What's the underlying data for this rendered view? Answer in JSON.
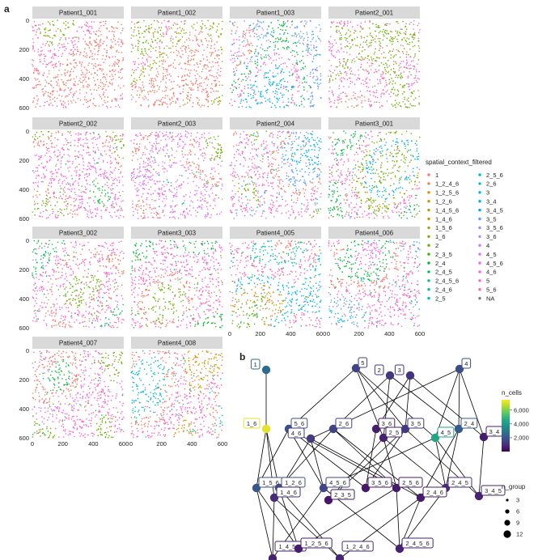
{
  "panel_a": {
    "label": "a",
    "legend_title": "spatial_context_filtered",
    "legend_items": [
      {
        "name": "1",
        "color": "#F8766D"
      },
      {
        "name": "1_2_4_6",
        "color": "#F07E4A"
      },
      {
        "name": "1_2_5_6",
        "color": "#E58700"
      },
      {
        "name": "1_2_6",
        "color": "#D89000"
      },
      {
        "name": "1_4_5_6",
        "color": "#C99800"
      },
      {
        "name": "1_4_6",
        "color": "#B79F00"
      },
      {
        "name": "1_5_6",
        "color": "#A3A500"
      },
      {
        "name": "1_6",
        "color": "#8BAB00"
      },
      {
        "name": "2",
        "color": "#6BB100"
      },
      {
        "name": "2_3_5",
        "color": "#39B600"
      },
      {
        "name": "2_4",
        "color": "#00BA38"
      },
      {
        "name": "2_4_5",
        "color": "#00BD5C"
      },
      {
        "name": "2_4_5_6",
        "color": "#00BF7D"
      },
      {
        "name": "2_4_6",
        "color": "#00C09A"
      },
      {
        "name": "2_5",
        "color": "#00C0B5"
      },
      {
        "name": "2_5_6",
        "color": "#00BECD"
      },
      {
        "name": "2_6",
        "color": "#00BAE0"
      },
      {
        "name": "3",
        "color": "#00B4EF"
      },
      {
        "name": "3_4",
        "color": "#00ADFA"
      },
      {
        "name": "3_4_5",
        "color": "#00A5FF"
      },
      {
        "name": "3_5",
        "color": "#619CFF"
      },
      {
        "name": "3_5_6",
        "color": "#8F91FF"
      },
      {
        "name": "3_6",
        "color": "#B186FF"
      },
      {
        "name": "4",
        "color": "#CB7BFF"
      },
      {
        "name": "4_5",
        "color": "#DE71F9"
      },
      {
        "name": "4_5_6",
        "color": "#EE67EC"
      },
      {
        "name": "4_6",
        "color": "#F862DB"
      },
      {
        "name": "5",
        "color": "#FF61C7"
      },
      {
        "name": "5_6",
        "color": "#FF65AE"
      },
      {
        "name": "NA",
        "color": "#7F7F7F"
      }
    ]
  },
  "panel_b": {
    "label": "b",
    "colorbar_title": "n_cells",
    "colorbar_ticks": [
      "6,000",
      "4,000",
      "2,000"
    ],
    "size_title": "n_group",
    "size_ticks": [
      "3",
      "6",
      "9",
      "12"
    ],
    "nodes": [
      {
        "name": "1",
        "ncells": 2600
      },
      {
        "name": "5",
        "ncells": 1500
      },
      {
        "name": "2",
        "ncells": 1200
      },
      {
        "name": "3",
        "ncells": 1100
      },
      {
        "name": "4",
        "ncells": 1700
      },
      {
        "name": "1_6",
        "ncells": 7200
      },
      {
        "name": "5_6",
        "ncells": 1800
      },
      {
        "name": "2_6",
        "ncells": 1500
      },
      {
        "name": "4_6",
        "ncells": 1300
      },
      {
        "name": "3_6",
        "ncells": 600
      },
      {
        "name": "2_5",
        "ncells": 700
      },
      {
        "name": "3_5",
        "ncells": 1300
      },
      {
        "name": "4_5",
        "ncells": 4400
      },
      {
        "name": "2_4",
        "ncells": 2100
      },
      {
        "name": "3_4",
        "ncells": 600
      },
      {
        "name": "1_5_6",
        "ncells": 2000
      },
      {
        "name": "1_2_6",
        "ncells": 1700
      },
      {
        "name": "1_4_6",
        "ncells": 900
      },
      {
        "name": "4_5_6",
        "ncells": 1600
      },
      {
        "name": "3_5_6",
        "ncells": 500
      },
      {
        "name": "2_5_6",
        "ncells": 600
      },
      {
        "name": "2_3_5",
        "ncells": 500
      },
      {
        "name": "2_4_5",
        "ncells": 900
      },
      {
        "name": "2_4_6",
        "ncells": 600
      },
      {
        "name": "3_4_5",
        "ncells": 700
      },
      {
        "name": "1_4_5_6",
        "ncells": 700
      },
      {
        "name": "1_2_4_6",
        "ncells": 800
      },
      {
        "name": "1_2_5_6",
        "ncells": 600
      },
      {
        "name": "2_4_5_6",
        "ncells": 700
      }
    ]
  },
  "chart_data": [
    {
      "type": "scatter",
      "facets": [
        "Patient1_001",
        "Patient1_002",
        "Patient1_003",
        "Patient2_001",
        "Patient2_002",
        "Patient2_003",
        "Patient2_004",
        "Patient3_001",
        "Patient3_002",
        "Patient3_003",
        "Patient4_005",
        "Patient4_006",
        "Patient4_007",
        "Patient4_008"
      ],
      "x_ticks": [
        "0",
        "200",
        "400",
        "600"
      ],
      "y_ticks": [
        "0",
        "200",
        "400",
        "600"
      ],
      "xlim": [
        0,
        600
      ],
      "ylim": [
        600,
        0
      ],
      "color_by": "spatial_context_filtered"
    },
    {
      "type": "graph",
      "edges": [
        [
          "1",
          "1_6"
        ],
        [
          "5",
          "5_6"
        ],
        [
          "5",
          "2_5"
        ],
        [
          "5",
          "3_5"
        ],
        [
          "5",
          "4_5"
        ],
        [
          "2",
          "2_6"
        ],
        [
          "2",
          "2_5"
        ],
        [
          "2",
          "2_4"
        ],
        [
          "3",
          "3_6"
        ],
        [
          "3",
          "3_5"
        ],
        [
          "3",
          "3_4"
        ],
        [
          "4",
          "4_6"
        ],
        [
          "4",
          "4_5"
        ],
        [
          "4",
          "2_4"
        ],
        [
          "4",
          "3_4"
        ],
        [
          "1_6",
          "1_5_6"
        ],
        [
          "1_6",
          "1_2_6"
        ],
        [
          "1_6",
          "1_4_6"
        ],
        [
          "5_6",
          "1_5_6"
        ],
        [
          "5_6",
          "4_5_6"
        ],
        [
          "5_6",
          "3_5_6"
        ],
        [
          "5_6",
          "2_5_6"
        ],
        [
          "2_6",
          "1_2_6"
        ],
        [
          "2_6",
          "2_5_6"
        ],
        [
          "2_6",
          "2_4_6"
        ],
        [
          "4_6",
          "1_4_6"
        ],
        [
          "4_6",
          "4_5_6"
        ],
        [
          "4_6",
          "2_4_6"
        ],
        [
          "3_6",
          "3_5_6"
        ],
        [
          "2_5",
          "2_5_6"
        ],
        [
          "2_5",
          "2_3_5"
        ],
        [
          "2_5",
          "2_4_5"
        ],
        [
          "3_5",
          "3_5_6"
        ],
        [
          "3_5",
          "2_3_5"
        ],
        [
          "3_5",
          "3_4_5"
        ],
        [
          "4_5",
          "4_5_6"
        ],
        [
          "4_5",
          "2_4_5"
        ],
        [
          "4_5",
          "3_4_5"
        ],
        [
          "2_4",
          "2_4_5"
        ],
        [
          "2_4",
          "2_4_6"
        ],
        [
          "3_4",
          "3_4_5"
        ],
        [
          "1_5_6",
          "1_4_5_6"
        ],
        [
          "1_5_6",
          "1_2_5_6"
        ],
        [
          "1_2_6",
          "1_2_4_6"
        ],
        [
          "1_2_6",
          "1_2_5_6"
        ],
        [
          "1_4_6",
          "1_4_5_6"
        ],
        [
          "1_4_6",
          "1_2_4_6"
        ],
        [
          "4_5_6",
          "1_4_5_6"
        ],
        [
          "4_5_6",
          "2_4_5_6"
        ],
        [
          "2_5_6",
          "1_2_5_6"
        ],
        [
          "2_5_6",
          "2_4_5_6"
        ],
        [
          "2_4_5",
          "2_4_5_6"
        ],
        [
          "2_4_6",
          "1_2_4_6"
        ],
        [
          "2_4_6",
          "2_4_5_6"
        ]
      ]
    }
  ]
}
